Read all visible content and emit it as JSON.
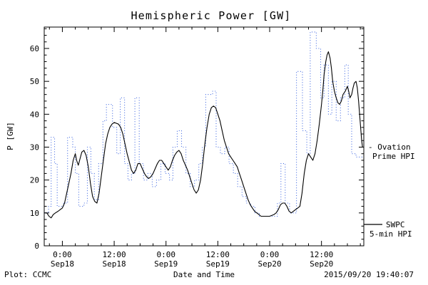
{
  "title": "Hemispheric Power [GW]",
  "footer": {
    "left": "Plot: CCMC",
    "right": "2015/09/20 19:40:07"
  },
  "legend": {
    "ovation": {
      "line1": "- Ovation",
      "line2": "Prime HPI",
      "color": "#4169e1"
    },
    "swpc": {
      "line1": "SWPC",
      "line2": "5-min HPI",
      "color": "#000000"
    }
  },
  "chart_data": {
    "type": "line",
    "title": "Hemispheric Power [GW]",
    "xlabel": "Date and Time",
    "ylabel": "P [GW]",
    "grid": false,
    "x_axis": {
      "unit": "hours from 2015-09-18 00:00",
      "range": [
        -4.2,
        69.8
      ],
      "minor_tick_interval": 3,
      "major_ticks": [
        {
          "hours": 0,
          "time": "0:00",
          "date": "Sep18"
        },
        {
          "hours": 12,
          "time": "12:00",
          "date": "Sep18"
        },
        {
          "hours": 24,
          "time": "0:00",
          "date": "Sep19"
        },
        {
          "hours": 36,
          "time": "12:00",
          "date": "Sep19"
        },
        {
          "hours": 48,
          "time": "0:00",
          "date": "Sep20"
        },
        {
          "hours": 60,
          "time": "12:00",
          "date": "Sep20"
        }
      ]
    },
    "y_axis": {
      "lim": [
        0,
        66.5
      ],
      "major_ticks": [
        0,
        10,
        20,
        30,
        40,
        50,
        60
      ],
      "minor_tick_interval": 2
    },
    "series": [
      {
        "name": "Ovation Prime HPI",
        "color": "#4169e1",
        "line_style": "dotted",
        "interpolation": "step-after",
        "points": [
          [
            -4.2,
            10
          ],
          [
            -3.2,
            12
          ],
          [
            -2.6,
            33
          ],
          [
            -1.8,
            25
          ],
          [
            -1.2,
            12
          ],
          [
            0.3,
            13
          ],
          [
            1.2,
            33
          ],
          [
            2.4,
            30
          ],
          [
            3,
            22
          ],
          [
            3.8,
            12
          ],
          [
            5,
            13
          ],
          [
            5.8,
            30
          ],
          [
            6.6,
            22
          ],
          [
            7.4,
            14
          ],
          [
            8.4,
            25
          ],
          [
            9.4,
            38
          ],
          [
            10.2,
            43
          ],
          [
            11.6,
            36
          ],
          [
            12.6,
            28
          ],
          [
            13.4,
            45
          ],
          [
            14.4,
            25
          ],
          [
            15.2,
            20
          ],
          [
            16,
            22
          ],
          [
            16.8,
            45
          ],
          [
            17.8,
            25
          ],
          [
            18.8,
            20
          ],
          [
            19.8,
            22
          ],
          [
            20.8,
            18
          ],
          [
            21.8,
            20
          ],
          [
            22.8,
            25
          ],
          [
            23.8,
            22
          ],
          [
            24.8,
            20
          ],
          [
            25.6,
            30
          ],
          [
            26.6,
            35
          ],
          [
            27.6,
            30
          ],
          [
            28.6,
            22
          ],
          [
            29.6,
            18
          ],
          [
            30.6,
            20
          ],
          [
            31.6,
            25
          ],
          [
            32.4,
            30
          ],
          [
            33.2,
            46
          ],
          [
            34.8,
            47
          ],
          [
            35.6,
            30
          ],
          [
            36.6,
            28
          ],
          [
            37.6,
            30
          ],
          [
            38.6,
            25
          ],
          [
            39.6,
            22
          ],
          [
            40.6,
            18
          ],
          [
            41.6,
            15
          ],
          [
            42.6,
            13
          ],
          [
            43.6,
            12
          ],
          [
            44.6,
            10
          ],
          [
            45.6,
            9
          ],
          [
            49,
            9
          ],
          [
            49.8,
            13
          ],
          [
            50.6,
            25
          ],
          [
            51.6,
            13
          ],
          [
            52.6,
            10
          ],
          [
            54.2,
            53
          ],
          [
            55.6,
            35
          ],
          [
            56.6,
            28
          ],
          [
            57.4,
            65
          ],
          [
            58.8,
            60
          ],
          [
            59.8,
            45
          ],
          [
            60.6,
            55
          ],
          [
            61.6,
            40
          ],
          [
            62.4,
            50
          ],
          [
            63.4,
            38
          ],
          [
            64.4,
            45
          ],
          [
            65.4,
            55
          ],
          [
            66.2,
            40
          ],
          [
            67,
            28
          ],
          [
            68,
            27
          ],
          [
            69.8,
            27
          ]
        ]
      },
      {
        "name": "SWPC 5-min HPI",
        "color": "#000000",
        "line_style": "solid",
        "interpolation": "linear",
        "points": [
          [
            -4.2,
            10
          ],
          [
            -3.6,
            10
          ],
          [
            -3.1,
            9
          ],
          [
            -2.6,
            8.5
          ],
          [
            -2.1,
            9.5
          ],
          [
            -1.6,
            10
          ],
          [
            -1,
            10.5
          ],
          [
            -0.5,
            11
          ],
          [
            0,
            11.5
          ],
          [
            0.5,
            13
          ],
          [
            1,
            16
          ],
          [
            1.5,
            19
          ],
          [
            2,
            22
          ],
          [
            2.5,
            26
          ],
          [
            3,
            28
          ],
          [
            3.3,
            26
          ],
          [
            3.7,
            24.5
          ],
          [
            4,
            26
          ],
          [
            4.5,
            28.5
          ],
          [
            5,
            29
          ],
          [
            5.5,
            27.5
          ],
          [
            6,
            24
          ],
          [
            6.5,
            19
          ],
          [
            7,
            15
          ],
          [
            7.5,
            13.5
          ],
          [
            8,
            13
          ],
          [
            8.5,
            16
          ],
          [
            9,
            21
          ],
          [
            9.5,
            26
          ],
          [
            10,
            31
          ],
          [
            10.5,
            34
          ],
          [
            11,
            36
          ],
          [
            11.5,
            37
          ],
          [
            12,
            37.5
          ],
          [
            13,
            37
          ],
          [
            13.5,
            36
          ],
          [
            14,
            34
          ],
          [
            14.5,
            31
          ],
          [
            15,
            28
          ],
          [
            15.5,
            25.5
          ],
          [
            16,
            23
          ],
          [
            16.5,
            22
          ],
          [
            17,
            23
          ],
          [
            17.5,
            25
          ],
          [
            18,
            25
          ],
          [
            18.5,
            23.5
          ],
          [
            19,
            22
          ],
          [
            19.5,
            21
          ],
          [
            20,
            20.5
          ],
          [
            20.5,
            21
          ],
          [
            21,
            22
          ],
          [
            21.5,
            23.5
          ],
          [
            22,
            25
          ],
          [
            22.5,
            26
          ],
          [
            23,
            26
          ],
          [
            23.5,
            25
          ],
          [
            24,
            24
          ],
          [
            24.5,
            23
          ],
          [
            25,
            24
          ],
          [
            25.5,
            26
          ],
          [
            26,
            27.5
          ],
          [
            26.5,
            28.5
          ],
          [
            27,
            29
          ],
          [
            27.5,
            28
          ],
          [
            28,
            26
          ],
          [
            28.5,
            24.5
          ],
          [
            29,
            23
          ],
          [
            29.5,
            21
          ],
          [
            30,
            19
          ],
          [
            30.5,
            17
          ],
          [
            31,
            16
          ],
          [
            31.5,
            17
          ],
          [
            32,
            20
          ],
          [
            32.5,
            25
          ],
          [
            33,
            31
          ],
          [
            33.5,
            36
          ],
          [
            34,
            40
          ],
          [
            34.5,
            42
          ],
          [
            35,
            42.5
          ],
          [
            35.5,
            42
          ],
          [
            36,
            40
          ],
          [
            36.5,
            38
          ],
          [
            37,
            35
          ],
          [
            37.5,
            32
          ],
          [
            38,
            30
          ],
          [
            38.5,
            28
          ],
          [
            39,
            27
          ],
          [
            39.5,
            26
          ],
          [
            40,
            25
          ],
          [
            40.5,
            24
          ],
          [
            41,
            22
          ],
          [
            41.5,
            20
          ],
          [
            42,
            18
          ],
          [
            42.5,
            16
          ],
          [
            43,
            14
          ],
          [
            43.5,
            12.5
          ],
          [
            44,
            11.5
          ],
          [
            44.5,
            10.5
          ],
          [
            45,
            10
          ],
          [
            45.5,
            9.5
          ],
          [
            46,
            9
          ],
          [
            47,
            9
          ],
          [
            48,
            9
          ],
          [
            49,
            9.5
          ],
          [
            49.5,
            10
          ],
          [
            50,
            11
          ],
          [
            50.5,
            12.5
          ],
          [
            51,
            13
          ],
          [
            51.5,
            13
          ],
          [
            52,
            12
          ],
          [
            52.5,
            10.5
          ],
          [
            53,
            10
          ],
          [
            54,
            11
          ],
          [
            54.5,
            11.5
          ],
          [
            55,
            12
          ],
          [
            55.5,
            16
          ],
          [
            56,
            22
          ],
          [
            56.5,
            26
          ],
          [
            57,
            28
          ],
          [
            57.5,
            27
          ],
          [
            58,
            26
          ],
          [
            58.5,
            28
          ],
          [
            59,
            32
          ],
          [
            59.5,
            37
          ],
          [
            60,
            43
          ],
          [
            60.3,
            47
          ],
          [
            60.6,
            52
          ],
          [
            61,
            56
          ],
          [
            61.3,
            58
          ],
          [
            61.6,
            59
          ],
          [
            62,
            57
          ],
          [
            62.3,
            54
          ],
          [
            62.6,
            50
          ],
          [
            63,
            47
          ],
          [
            63.4,
            45
          ],
          [
            63.8,
            43.5
          ],
          [
            64.2,
            43
          ],
          [
            64.6,
            44
          ],
          [
            65,
            46
          ],
          [
            65.5,
            47
          ],
          [
            66,
            48.5
          ],
          [
            66.3,
            47
          ],
          [
            66.6,
            45
          ],
          [
            67,
            46
          ],
          [
            67.3,
            48
          ],
          [
            67.6,
            49.5
          ],
          [
            68,
            50
          ],
          [
            68.3,
            48
          ],
          [
            68.6,
            44
          ],
          [
            69,
            37
          ],
          [
            69.3,
            32
          ],
          [
            69.5,
            30
          ]
        ]
      }
    ]
  }
}
